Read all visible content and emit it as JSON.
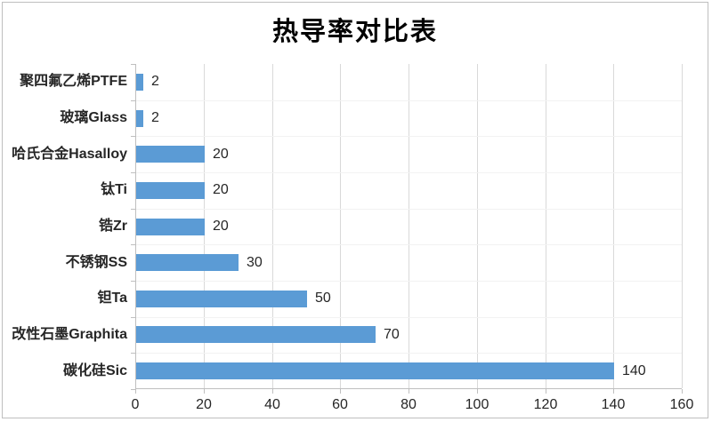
{
  "window": {
    "background": "#FFFFFF",
    "border_color": "#BFBFBF"
  },
  "chart_data": {
    "type": "bar",
    "orientation": "horizontal",
    "title": "热导率对比表",
    "categories": [
      "聚四氟乙烯PTFE",
      "玻璃Glass",
      "哈氏合金Hasalloy",
      "钛Ti",
      "锆Zr",
      "不锈钢SS",
      "钽Ta",
      "改性石墨Graphita",
      "碳化硅Sic"
    ],
    "values": [
      2,
      2,
      20,
      20,
      20,
      30,
      50,
      70,
      140
    ],
    "data_labels": [
      "2",
      "2",
      "20",
      "20",
      "20",
      "30",
      "50",
      "70",
      "140"
    ],
    "category_order": "top-to-bottom",
    "xlim": [
      0,
      160
    ],
    "x_ticks": [
      0,
      20,
      40,
      60,
      80,
      100,
      120,
      140,
      160
    ],
    "xlabel": "",
    "ylabel": "",
    "legend": "none",
    "grid": "vertical-major",
    "colors": {
      "bar": "#5B9BD5",
      "gridline": "#D9D9D9",
      "row_line": "#F2F2F2",
      "axis": "#BFBFBF",
      "label_text": "#262626",
      "title_text": "#000000"
    }
  }
}
